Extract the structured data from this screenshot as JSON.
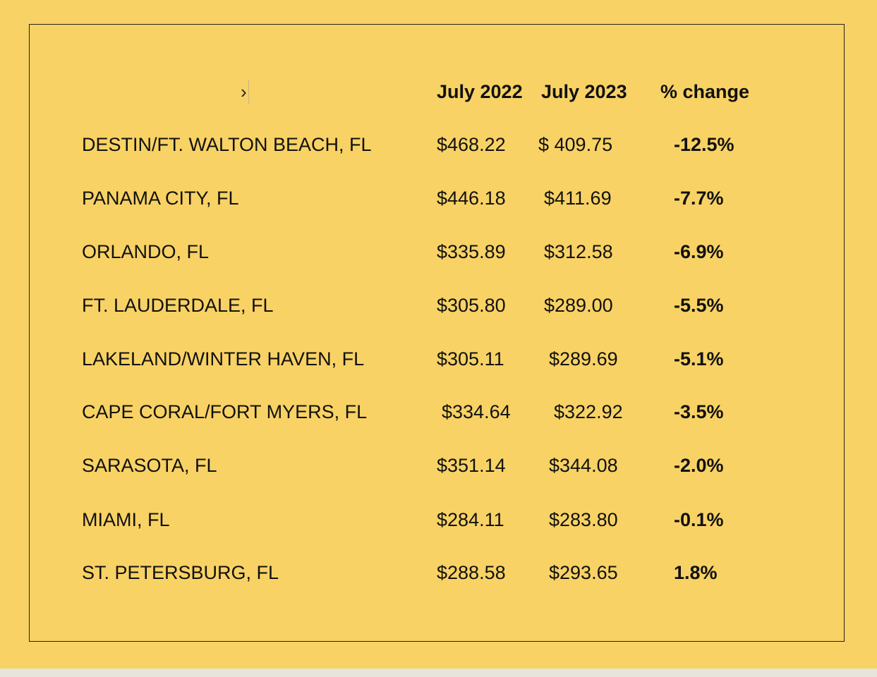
{
  "table": {
    "marker": "›",
    "headers": {
      "july_2022": "July 2022",
      "july_2023": "July 2023",
      "pct_change": "% change"
    },
    "rows": [
      {
        "city": "DESTIN/FT. WALTON BEACH, FL",
        "july_2022": "$468.22",
        "july_2023": "$ 409.75",
        "pct_change": "-12.5%"
      },
      {
        "city": "PANAMA CITY, FL",
        "july_2022": "$446.18",
        "july_2023": "$411.69",
        "pct_change": "-7.7%"
      },
      {
        "city": "ORLANDO, FL",
        "july_2022": "$335.89",
        "july_2023": "$312.58",
        "pct_change": "-6.9%"
      },
      {
        "city": "FT. LAUDERDALE, FL",
        "july_2022": "$305.80",
        "july_2023": "$289.00",
        "pct_change": "-5.5%"
      },
      {
        "city": "LAKELAND/WINTER HAVEN, FL",
        "july_2022": "$305.11",
        "july_2023": "$289.69",
        "pct_change": "-5.1%"
      },
      {
        "city": "CAPE CORAL/FORT MYERS, FL",
        "july_2022": "$334.64",
        "july_2023": "$322.92",
        "pct_change": "-3.5%"
      },
      {
        "city": "SARASOTA, FL",
        "july_2022": "$351.14",
        "july_2023": "$344.08",
        "pct_change": "-2.0%"
      },
      {
        "city": "MIAMI, FL",
        "july_2022": "$284.11",
        "july_2023": "$283.80",
        "pct_change": "-0.1%"
      },
      {
        "city": "ST. PETERSBURG, FL",
        "july_2022": "$288.58",
        "july_2023": "$293.65",
        "pct_change": "1.8%"
      }
    ]
  }
}
